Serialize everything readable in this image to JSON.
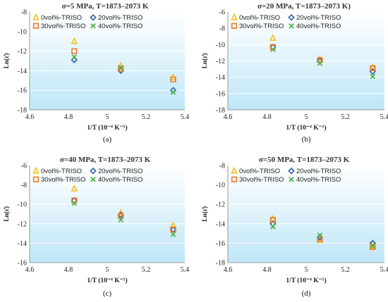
{
  "colors": {
    "gradient_top": "#ffffff",
    "gradient_bottom": "#bfe6f8",
    "axis": "#9a9a9a"
  },
  "chart_data": [
    {
      "type": "scatter",
      "panel_label": "(a)",
      "title": "σ=5 MPa, T=1873–2073 K",
      "xlabel": "1/T (10⁻⁴ K⁻¹)",
      "ylabel": "Ln(ε̇)",
      "xlim": [
        4.6,
        5.4
      ],
      "ylim": [
        -18,
        -8
      ],
      "xticks": [
        "4.6",
        "4.8",
        "5",
        "5.2",
        "5.4"
      ],
      "yticks": [
        "-8",
        "-10",
        "-12",
        "-14",
        "-16",
        "-18"
      ],
      "grid": "y",
      "legend_position": "top-left",
      "series": [
        {
          "name": "0vol%-TRISO",
          "marker": "triangle",
          "color": "#f2c21a",
          "x": [
            4.83,
            5.07,
            5.34
          ],
          "y": [
            -11.0,
            -13.5,
            -14.7
          ]
        },
        {
          "name": "20vol%-TRISO",
          "marker": "diamond",
          "color": "#2e5ea8",
          "x": [
            4.83,
            5.07,
            5.34
          ],
          "y": [
            -12.9,
            -14.0,
            -16.0
          ]
        },
        {
          "name": "30vol%-TRISO",
          "marker": "square",
          "color": "#f07a28",
          "x": [
            4.83,
            5.07,
            5.34
          ],
          "y": [
            -12.0,
            -13.8,
            -14.9
          ]
        },
        {
          "name": "40vol%-TRISO",
          "marker": "x",
          "color": "#4bb245",
          "x": [
            4.83,
            5.07,
            5.34
          ],
          "y": [
            -12.6,
            -13.7,
            -16.2
          ]
        }
      ]
    },
    {
      "type": "scatter",
      "panel_label": "(b)",
      "title": "σ=20 MPa, T=1873–2073 K)",
      "xlabel": "1/T (10⁻⁴ K⁻¹)",
      "ylabel": "Ln(ε̇)",
      "xlim": [
        4.6,
        5.4
      ],
      "ylim": [
        -18,
        -6
      ],
      "xticks": [
        "4.6",
        "4.8",
        "5",
        "5.2",
        "5.4"
      ],
      "yticks": [
        "-6",
        "-8",
        "-10",
        "-12",
        "-14",
        "-16",
        "-18"
      ],
      "grid": "y",
      "legend_position": "top-left",
      "series": [
        {
          "name": "0vol%-TRISO",
          "marker": "triangle",
          "color": "#f2c21a",
          "x": [
            4.83,
            5.07,
            5.34
          ],
          "y": [
            -9.2,
            -11.8,
            -12.8
          ]
        },
        {
          "name": "20vol%-TRISO",
          "marker": "diamond",
          "color": "#2e5ea8",
          "x": [
            4.83,
            5.07,
            5.34
          ],
          "y": [
            -10.3,
            -12.0,
            -13.3
          ]
        },
        {
          "name": "30vol%-TRISO",
          "marker": "square",
          "color": "#f07a28",
          "x": [
            4.83,
            5.07,
            5.34
          ],
          "y": [
            -10.3,
            -11.9,
            -12.9
          ]
        },
        {
          "name": "40vol%-TRISO",
          "marker": "x",
          "color": "#4bb245",
          "x": [
            4.83,
            5.07,
            5.34
          ],
          "y": [
            -10.6,
            -12.3,
            -13.9
          ]
        }
      ]
    },
    {
      "type": "scatter",
      "panel_label": "(c)",
      "title": "σ=40 MPa, T=1873–2073 K",
      "xlabel": "1/T (10⁻⁴ K⁻¹)",
      "ylabel": "Ln(ε̇)",
      "xlim": [
        4.6,
        5.4
      ],
      "ylim": [
        -16,
        -6
      ],
      "xticks": [
        "4.6",
        "4.8",
        "5",
        "5.2",
        "5.4"
      ],
      "yticks": [
        "-6",
        "-8",
        "-10",
        "-12",
        "-14",
        "-16"
      ],
      "grid": "y",
      "legend_position": "top-left",
      "series": [
        {
          "name": "0vol%-TRISO",
          "marker": "triangle",
          "color": "#f2c21a",
          "x": [
            4.83,
            5.07,
            5.34
          ],
          "y": [
            -8.4,
            -10.9,
            -12.2
          ]
        },
        {
          "name": "20vol%-TRISO",
          "marker": "diamond",
          "color": "#2e5ea8",
          "x": [
            4.83,
            5.07,
            5.34
          ],
          "y": [
            -9.6,
            -11.1,
            -12.6
          ]
        },
        {
          "name": "30vol%-TRISO",
          "marker": "square",
          "color": "#f07a28",
          "x": [
            4.83,
            5.07,
            5.34
          ],
          "y": [
            -9.6,
            -11.2,
            -12.6
          ]
        },
        {
          "name": "40vol%-TRISO",
          "marker": "x",
          "color": "#4bb245",
          "x": [
            4.83,
            5.07,
            5.34
          ],
          "y": [
            -9.9,
            -11.6,
            -13.1
          ]
        }
      ]
    },
    {
      "type": "scatter",
      "panel_label": "(d)",
      "title": "σ=50 MPa, T=1873–2073 K",
      "xlabel": "1/T (10⁻⁴ K⁻¹)",
      "ylabel": "Ln(ε̇)",
      "xlim": [
        4.6,
        5.4
      ],
      "ylim": [
        -18,
        -8
      ],
      "xticks": [
        "4.6",
        "4.8",
        "5",
        "5.2",
        "5.4"
      ],
      "yticks": [
        "-8",
        "-10",
        "-12",
        "-14",
        "-16",
        "-18"
      ],
      "grid": "y",
      "legend_position": "top-left",
      "series": [
        {
          "name": "0vol%-TRISO",
          "marker": "triangle",
          "color": "#f2c21a",
          "x": [
            4.83,
            5.07,
            5.34
          ],
          "y": [
            -13.5,
            -15.7,
            -16.3
          ]
        },
        {
          "name": "20vol%-TRISO",
          "marker": "diamond",
          "color": "#2e5ea8",
          "x": [
            4.83,
            5.07,
            5.34
          ],
          "y": [
            -14.0,
            -15.4,
            -16.0
          ]
        },
        {
          "name": "30vol%-TRISO",
          "marker": "square",
          "color": "#f07a28",
          "x": [
            4.83,
            5.07,
            5.34
          ],
          "y": [
            -13.6,
            -15.6,
            -16.4
          ]
        },
        {
          "name": "40vol%-TRISO",
          "marker": "x",
          "color": "#4bb245",
          "x": [
            4.83,
            5.07,
            5.34
          ],
          "y": [
            -14.3,
            -15.2,
            -16.3
          ]
        }
      ]
    }
  ]
}
